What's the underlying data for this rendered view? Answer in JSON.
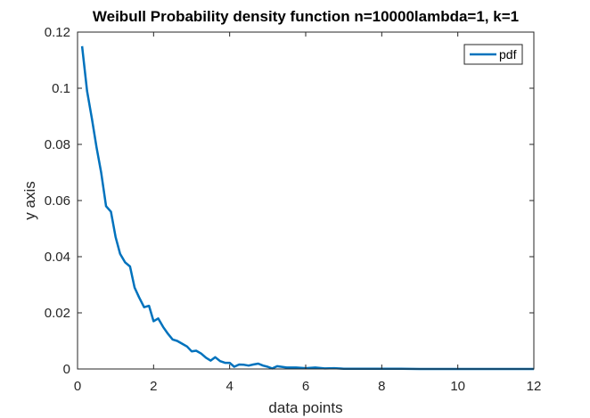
{
  "chart_data": {
    "type": "line",
    "title": "Weibull Probability density function n=10000lambda=1, k=1",
    "xlabel": "data points",
    "ylabel": "y axis",
    "xlim": [
      0,
      12
    ],
    "ylim": [
      0,
      0.12
    ],
    "xticks": [
      "0",
      "2",
      "4",
      "6",
      "8",
      "10",
      "12"
    ],
    "yticks": [
      "0",
      "0.02",
      "0.04",
      "0.06",
      "0.08",
      "0.1",
      "0.12"
    ],
    "grid": false,
    "legend_position": "top-right",
    "colors": {
      "series": "#0072BD",
      "axes": "#262626"
    },
    "series": [
      {
        "name": "pdf",
        "x": [
          0.12,
          0.25,
          0.38,
          0.5,
          0.62,
          0.75,
          0.88,
          1.0,
          1.12,
          1.25,
          1.38,
          1.5,
          1.62,
          1.75,
          1.88,
          2.0,
          2.12,
          2.25,
          2.38,
          2.5,
          2.62,
          2.75,
          2.88,
          3.0,
          3.12,
          3.25,
          3.38,
          3.5,
          3.62,
          3.75,
          3.88,
          4.0,
          4.12,
          4.25,
          4.38,
          4.5,
          4.62,
          4.75,
          4.88,
          5.0,
          5.12,
          5.25,
          5.5,
          5.75,
          6.0,
          6.25,
          6.5,
          6.75,
          7.0,
          7.5,
          8.0,
          8.5,
          9.0,
          9.5,
          10.0,
          11.0,
          12.0
        ],
        "y": [
          0.115,
          0.099,
          0.089,
          0.079,
          0.07,
          0.058,
          0.056,
          0.047,
          0.041,
          0.038,
          0.0365,
          0.029,
          0.0255,
          0.022,
          0.0225,
          0.017,
          0.018,
          0.015,
          0.0125,
          0.0105,
          0.01,
          0.009,
          0.008,
          0.0063,
          0.0065,
          0.0055,
          0.004,
          0.003,
          0.0042,
          0.0028,
          0.0022,
          0.0022,
          0.0008,
          0.0016,
          0.0015,
          0.0012,
          0.0016,
          0.0019,
          0.0012,
          0.0008,
          0.0002,
          0.001,
          0.0005,
          0.0005,
          0.0003,
          0.0005,
          0.0002,
          0.0003,
          0.0001,
          0.0001,
          0.0001,
          0.0001,
          0.0,
          0.0,
          0.0,
          0.0,
          0.0
        ]
      }
    ]
  }
}
